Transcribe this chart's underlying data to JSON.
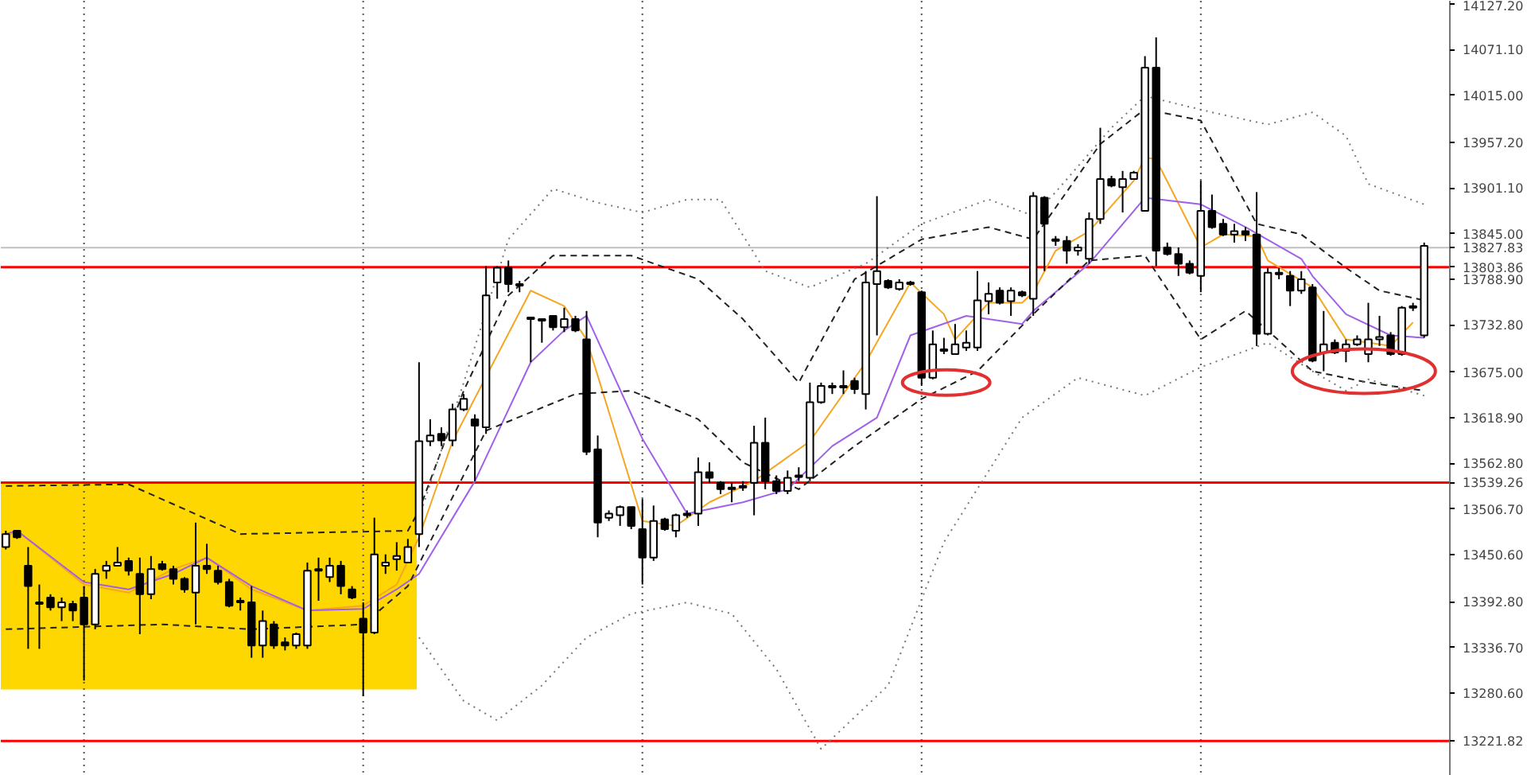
{
  "chart_data": {
    "type": "candlestick",
    "categories": [
      null,
      null,
      null,
      null,
      null,
      null,
      null,
      null,
      null,
      null,
      null,
      null,
      null,
      null,
      null,
      null,
      null,
      null,
      null,
      null,
      null,
      null,
      null,
      null,
      null,
      null,
      null,
      null,
      null,
      null,
      null,
      null,
      null,
      null,
      null,
      null,
      null,
      null,
      null,
      null,
      null,
      null,
      null,
      null,
      null,
      null,
      null,
      null,
      null,
      null,
      null,
      null,
      null,
      null,
      null,
      null,
      null,
      null,
      null,
      null,
      null,
      null,
      null,
      null,
      null,
      null,
      null,
      null,
      null,
      null,
      null,
      null,
      null,
      null,
      null,
      null,
      null,
      null,
      null,
      null,
      null,
      null,
      null,
      null,
      null,
      null,
      null,
      null,
      null,
      null,
      null,
      null,
      null,
      null,
      null,
      null,
      null,
      null,
      null,
      null,
      null,
      null,
      null,
      null,
      null,
      null,
      null,
      null,
      null,
      null,
      null,
      null,
      null,
      null,
      null,
      null,
      null,
      null,
      null,
      null,
      null,
      null,
      null,
      null,
      null,
      null,
      null,
      null
    ],
    "ohlc": [
      [
        13460,
        13480,
        13457,
        13476
      ],
      [
        13480,
        13480,
        13470,
        13472
      ],
      [
        13437,
        13460,
        13335,
        13412
      ],
      [
        13392,
        13414,
        13335,
        13390
      ],
      [
        13398,
        13402,
        13382,
        13386
      ],
      [
        13386,
        13398,
        13369,
        13392
      ],
      [
        13390,
        13394,
        13369,
        13382
      ],
      [
        13398,
        13412,
        13296,
        13365
      ],
      [
        13365,
        13433,
        13359,
        13427
      ],
      [
        13431,
        13443,
        13421,
        13437
      ],
      [
        13437,
        13460,
        13437,
        13441
      ],
      [
        13443,
        13447,
        13425,
        13431
      ],
      [
        13427,
        13447,
        13353,
        13402
      ],
      [
        13402,
        13449,
        13396,
        13433
      ],
      [
        13439,
        13443,
        13431,
        13433
      ],
      [
        13433,
        13437,
        13414,
        13421
      ],
      [
        13421,
        13423,
        13404,
        13408
      ],
      [
        13404,
        13490,
        13365,
        13437
      ],
      [
        13437,
        13464,
        13427,
        13433
      ],
      [
        13431,
        13437,
        13414,
        13417
      ],
      [
        13417,
        13421,
        13386,
        13388
      ],
      [
        13394,
        13398,
        13382,
        13392
      ],
      [
        13392,
        13412,
        13324,
        13339
      ],
      [
        13339,
        13382,
        13324,
        13369
      ],
      [
        13365,
        13369,
        13335,
        13339
      ],
      [
        13343,
        13349,
        13333,
        13339
      ],
      [
        13339,
        13355,
        13335,
        13353
      ],
      [
        13339,
        13441,
        13335,
        13431
      ],
      [
        13431,
        13447,
        13394,
        13433
      ],
      [
        13423,
        13447,
        13417,
        13437
      ],
      [
        13437,
        13443,
        13402,
        13412
      ],
      [
        13408,
        13412,
        13396,
        13398
      ],
      [
        13372,
        13392,
        13277,
        13355
      ],
      [
        13355,
        13496,
        13353,
        13451
      ],
      [
        13437,
        13451,
        13427,
        13441
      ],
      [
        13445,
        13466,
        13431,
        13449
      ],
      [
        13441,
        13470,
        13441,
        13460
      ],
      [
        13476,
        13687,
        13460,
        13590
      ],
      [
        13590,
        13617,
        13584,
        13597
      ],
      [
        13599,
        13607,
        13584,
        13591
      ],
      [
        13591,
        13636,
        13584,
        13629
      ],
      [
        13629,
        13648,
        13627,
        13642
      ],
      [
        13617,
        13623,
        13541,
        13609
      ],
      [
        13607,
        13805,
        13599,
        13769
      ],
      [
        13785,
        13805,
        13765,
        13803
      ],
      [
        13803,
        13812,
        13773,
        13783
      ],
      [
        13783,
        13787,
        13773,
        13781
      ],
      [
        13742,
        13742,
        13687,
        13740
      ],
      [
        13740,
        13740,
        13711,
        13738
      ],
      [
        13744,
        13744,
        13726,
        13730
      ],
      [
        13730,
        13754,
        13724,
        13740
      ],
      [
        13740,
        13744,
        13724,
        13726
      ],
      [
        13715,
        13750,
        13573,
        13577
      ],
      [
        13580,
        13597,
        13472,
        13490
      ],
      [
        13496,
        13505,
        13492,
        13501
      ],
      [
        13499,
        13511,
        13486,
        13509
      ],
      [
        13509,
        13509,
        13482,
        13486
      ],
      [
        13482,
        13519,
        13414,
        13447
      ],
      [
        13447,
        13511,
        13443,
        13492
      ],
      [
        13494,
        13496,
        13480,
        13482
      ],
      [
        13480,
        13501,
        13472,
        13499
      ],
      [
        13499,
        13505,
        13496,
        13501
      ],
      [
        13501,
        13570,
        13486,
        13552
      ],
      [
        13552,
        13564,
        13539,
        13545
      ],
      [
        13539,
        13541,
        13525,
        13531
      ],
      [
        13533,
        13539,
        13515,
        13531
      ],
      [
        13535,
        13541,
        13529,
        13533
      ],
      [
        13539,
        13609,
        13499,
        13588
      ],
      [
        13588,
        13619,
        13531,
        13541
      ],
      [
        13541,
        13548,
        13525,
        13529
      ],
      [
        13529,
        13554,
        13525,
        13545
      ],
      [
        13546,
        13558,
        13541,
        13548
      ],
      [
        13545,
        13662,
        13541,
        13638
      ],
      [
        13638,
        13662,
        13636,
        13658
      ],
      [
        13656,
        13662,
        13648,
        13658
      ],
      [
        13658,
        13677,
        13648,
        13656
      ],
      [
        13664,
        13668,
        13648,
        13654
      ],
      [
        13648,
        13799,
        13629,
        13785
      ],
      [
        13783,
        13891,
        13720,
        13799
      ],
      [
        13787,
        13789,
        13777,
        13779
      ],
      [
        13777,
        13789,
        13775,
        13785
      ],
      [
        13785,
        13787,
        13781,
        13783
      ],
      [
        13773,
        13775,
        13658,
        13668
      ],
      [
        13668,
        13726,
        13666,
        13709
      ],
      [
        13703,
        13717,
        13697,
        13701
      ],
      [
        13697,
        13734,
        13697,
        13709
      ],
      [
        13705,
        13726,
        13701,
        13711
      ],
      [
        13705,
        13799,
        13701,
        13763
      ],
      [
        13762,
        13785,
        13746,
        13771
      ],
      [
        13775,
        13779,
        13758,
        13760
      ],
      [
        13762,
        13779,
        13744,
        13775
      ],
      [
        13773,
        13775,
        13767,
        13769
      ],
      [
        13765,
        13896,
        13744,
        13891
      ],
      [
        13889,
        13891,
        13799,
        13857
      ],
      [
        13838,
        13842,
        13830,
        13836
      ],
      [
        13836,
        13842,
        13808,
        13824
      ],
      [
        13824,
        13832,
        13818,
        13828
      ],
      [
        13814,
        13871,
        13808,
        13863
      ],
      [
        13863,
        13975,
        13857,
        13912
      ],
      [
        13912,
        13916,
        13902,
        13904
      ],
      [
        13902,
        13922,
        13871,
        13912
      ],
      [
        13912,
        13922,
        13912,
        13920
      ],
      [
        13873,
        14063,
        13873,
        14049
      ],
      [
        14049,
        14086,
        13805,
        13824
      ],
      [
        13828,
        13834,
        13818,
        13820
      ],
      [
        13820,
        13828,
        13793,
        13808
      ],
      [
        13808,
        13812,
        13795,
        13797
      ],
      [
        13793,
        13910,
        13773,
        13873
      ],
      [
        13873,
        13893,
        13851,
        13853
      ],
      [
        13857,
        13863,
        13842,
        13844
      ],
      [
        13844,
        13857,
        13834,
        13848
      ],
      [
        13848,
        13853,
        13836,
        13844
      ],
      [
        13844,
        13896,
        13707,
        13722
      ],
      [
        13722,
        13803,
        13720,
        13797
      ],
      [
        13797,
        13803,
        13789,
        13795
      ],
      [
        13793,
        13799,
        13756,
        13775
      ],
      [
        13775,
        13799,
        13771,
        13789
      ],
      [
        13779,
        13783,
        13687,
        13689
      ],
      [
        13699,
        13750,
        13676,
        13709
      ],
      [
        13711,
        13715,
        13697,
        13699
      ],
      [
        13701,
        13715,
        13687,
        13709
      ],
      [
        13709,
        13720,
        13707,
        13715
      ],
      [
        13697,
        13760,
        13687,
        13715
      ],
      [
        13715,
        13744,
        13707,
        13718
      ],
      [
        13720,
        13724,
        13695,
        13697
      ],
      [
        13697,
        13756,
        13695,
        13754
      ],
      [
        13754,
        13760,
        13750,
        13756
      ],
      [
        13720,
        13834,
        13717,
        13830
      ]
    ],
    "series": [
      {
        "type": "line",
        "color": "#f5a623",
        "values": [
          13472,
          13480,
          null,
          null,
          null,
          null,
          null,
          13414,
          null,
          null,
          null,
          13404,
          null,
          null,
          null,
          13433,
          null,
          null,
          13447,
          null,
          null,
          null,
          13408,
          null,
          null,
          null,
          null,
          13382,
          null,
          null,
          null,
          null,
          13388,
          null,
          null,
          13414,
          null,
          13472,
          null,
          null,
          13590,
          null,
          null,
          null,
          null,
          null,
          null,
          13775,
          null,
          null,
          13756,
          null,
          13715,
          null,
          null,
          null,
          null,
          13492,
          null,
          null,
          13486,
          null,
          null,
          13515,
          null,
          null,
          null,
          13541,
          null,
          null,
          null,
          null,
          13590,
          null,
          null,
          null,
          null,
          13687,
          null,
          null,
          null,
          13785,
          null,
          null,
          13746,
          13715,
          null,
          null,
          13760,
          null,
          null,
          13760,
          13773,
          null,
          13824,
          null,
          null,
          13848,
          null,
          null,
          null,
          13910,
          13939,
          13936,
          null,
          null,
          null,
          13828,
          null,
          13844,
          null,
          null,
          13842,
          13812,
          null,
          null,
          null,
          13779,
          null,
          null,
          13715,
          null,
          null,
          null,
          13707,
          null,
          13736,
          null
        ]
      },
      {
        "type": "line",
        "color": "#a061e8",
        "values": [
          13476,
          13480,
          null,
          null,
          null,
          null,
          null,
          13417,
          null,
          null,
          null,
          13408,
          null,
          null,
          null,
          13427,
          null,
          null,
          13447,
          null,
          null,
          null,
          13412,
          null,
          null,
          null,
          null,
          13382,
          null,
          null,
          null,
          null,
          13384,
          null,
          null,
          13408,
          null,
          13427,
          null,
          null,
          null,
          null,
          13541,
          null,
          null,
          null,
          null,
          13687,
          null,
          null,
          13726,
          null,
          13744,
          null,
          null,
          null,
          null,
          13593,
          null,
          null,
          null,
          13501,
          null,
          null,
          null,
          null,
          13515,
          null,
          null,
          null,
          13531,
          null,
          null,
          null,
          13584,
          null,
          null,
          null,
          13619,
          null,
          null,
          13720,
          null,
          null,
          null,
          null,
          13744,
          null,
          null,
          null,
          null,
          13734,
          13750,
          null,
          null,
          null,
          null,
          13808,
          null,
          null,
          null,
          null,
          13889,
          null,
          null,
          null,
          null,
          13881,
          null,
          null,
          null,
          13853,
          null,
          null,
          null,
          null,
          13814,
          13793,
          null,
          null,
          13746,
          null,
          null,
          null,
          13720,
          null,
          null,
          13717
        ]
      },
      {
        "type": "line",
        "color": "#222222",
        "line_style": "dashed",
        "values": [
          13535,
          null,
          null,
          null,
          null,
          null,
          null,
          null,
          null,
          null,
          null,
          13537,
          null,
          null,
          null,
          null,
          null,
          null,
          null,
          null,
          null,
          13476,
          null,
          null,
          null,
          null,
          null,
          null,
          null,
          null,
          null,
          null,
          null,
          null,
          null,
          null,
          13480,
          13505,
          null,
          null,
          null,
          13652,
          null,
          null,
          null,
          13769,
          null,
          null,
          null,
          13818,
          null,
          null,
          null,
          null,
          null,
          null,
          13818,
          null,
          null,
          null,
          null,
          null,
          13789,
          null,
          null,
          null,
          13740,
          null,
          null,
          null,
          null,
          13662,
          null,
          null,
          null,
          null,
          13789,
          null,
          null,
          null,
          null,
          null,
          13838,
          null,
          null,
          null,
          null,
          null,
          13853,
          null,
          null,
          null,
          13838,
          null,
          null,
          null,
          null,
          null,
          13955,
          null,
          null,
          null,
          13998,
          null,
          null,
          null,
          null,
          13984,
          null,
          null,
          null,
          null,
          13857,
          null,
          null,
          null,
          13844,
          null,
          null,
          null,
          13803,
          null,
          null,
          13775,
          null,
          null,
          null,
          13763
        ]
      },
      {
        "type": "line",
        "color": "#222222",
        "line_style": "dashed",
        "values": [
          13359,
          null,
          null,
          null,
          null,
          null,
          null,
          null,
          null,
          null,
          null,
          null,
          null,
          null,
          13365,
          null,
          null,
          null,
          null,
          null,
          null,
          null,
          13359,
          null,
          null,
          null,
          null,
          null,
          null,
          null,
          null,
          null,
          13365,
          null,
          null,
          null,
          13412,
          null,
          null,
          null,
          null,
          null,
          null,
          13603,
          null,
          null,
          null,
          null,
          null,
          null,
          null,
          13648,
          null,
          null,
          null,
          null,
          13652,
          null,
          null,
          null,
          null,
          null,
          13617,
          null,
          null,
          null,
          13564,
          null,
          null,
          null,
          null,
          13531,
          null,
          null,
          null,
          null,
          13584,
          null,
          null,
          null,
          null,
          null,
          13642,
          null,
          null,
          null,
          null,
          13676,
          null,
          null,
          null,
          null,
          13746,
          null,
          null,
          null,
          null,
          13812,
          null,
          null,
          null,
          null,
          13818,
          null,
          null,
          null,
          null,
          13715,
          null,
          null,
          null,
          13750,
          null,
          13726,
          null,
          null,
          null,
          13676,
          null,
          null,
          null,
          null,
          13662,
          null,
          null,
          null,
          null,
          13652
        ]
      },
      {
        "type": "line",
        "color": "#777777",
        "line_style": "dotted",
        "values": [
          null,
          null,
          null,
          null,
          null,
          null,
          null,
          null,
          null,
          null,
          null,
          null,
          null,
          null,
          null,
          null,
          null,
          null,
          null,
          null,
          null,
          null,
          null,
          null,
          null,
          null,
          null,
          null,
          null,
          null,
          null,
          null,
          null,
          null,
          null,
          null,
          null,
          13496,
          null,
          null,
          null,
          13662,
          null,
          null,
          null,
          13838,
          null,
          null,
          null,
          13900,
          null,
          null,
          null,
          13883,
          null,
          null,
          null,
          13871,
          null,
          null,
          null,
          13887,
          null,
          null,
          13887,
          null,
          null,
          null,
          13799,
          null,
          null,
          null,
          13779,
          null,
          null,
          null,
          null,
          13808,
          null,
          null,
          null,
          null,
          13857,
          null,
          null,
          null,
          null,
          null,
          13887,
          null,
          null,
          null,
          13867,
          null,
          13896,
          null,
          null,
          null,
          null,
          13975,
          null,
          null,
          14014,
          null,
          null,
          null,
          null,
          null,
          13994,
          null,
          null,
          null,
          null,
          13979,
          null,
          null,
          null,
          13994,
          null,
          null,
          13965,
          null,
          13906,
          null,
          null,
          null,
          null,
          13881
        ]
      },
      {
        "type": "line",
        "color": "#777777",
        "line_style": "dotted",
        "values": [
          null,
          null,
          null,
          null,
          null,
          null,
          null,
          null,
          null,
          null,
          null,
          null,
          null,
          null,
          null,
          null,
          null,
          null,
          null,
          null,
          null,
          null,
          null,
          null,
          null,
          null,
          null,
          null,
          null,
          null,
          null,
          null,
          null,
          null,
          null,
          null,
          null,
          13349,
          null,
          null,
          null,
          13271,
          null,
          null,
          13247,
          null,
          null,
          null,
          13290,
          null,
          null,
          null,
          13349,
          null,
          null,
          null,
          13378,
          null,
          null,
          null,
          null,
          13392,
          null,
          null,
          null,
          13378,
          null,
          null,
          null,
          13310,
          null,
          null,
          null,
          13212,
          null,
          null,
          null,
          null,
          null,
          13290,
          null,
          null,
          null,
          null,
          13466,
          null,
          null,
          null,
          null,
          null,
          null,
          13619,
          null,
          null,
          null,
          null,
          13668,
          null,
          null,
          null,
          null,
          null,
          13646,
          null,
          null,
          null,
          null,
          13681,
          null,
          null,
          null,
          null,
          null,
          13711,
          null,
          null,
          null,
          13676,
          null,
          null,
          13652,
          null,
          13666,
          null,
          null,
          null,
          null,
          13646
        ]
      }
    ],
    "ylim": [
      13179,
      14131
    ],
    "yticks": [
      {
        "value": 14127.2,
        "label": "14127.20"
      },
      {
        "value": 14071.1,
        "label": "14071.10"
      },
      {
        "value": 14015.0,
        "label": "14015.00"
      },
      {
        "value": 13957.2,
        "label": "13957.20"
      },
      {
        "value": 13901.1,
        "label": "13901.10"
      },
      {
        "value": 13845.0,
        "label": "13845.00"
      },
      {
        "value": 13788.9,
        "label": "13788.90"
      },
      {
        "value": 13732.8,
        "label": "13732.80"
      },
      {
        "value": 13675.0,
        "label": "13675.00"
      },
      {
        "value": 13618.9,
        "label": "13618.90"
      },
      {
        "value": 13562.8,
        "label": "13562.80"
      },
      {
        "value": 13506.7,
        "label": "13506.70"
      },
      {
        "value": 13450.6,
        "label": "13450.60"
      },
      {
        "value": 13392.8,
        "label": "13392.80"
      },
      {
        "value": 13336.7,
        "label": "13336.70"
      },
      {
        "value": 13280.6,
        "label": "13280.60"
      }
    ],
    "ref_lines": [
      {
        "axis": "y",
        "value": 13827.83,
        "label": "13827.83",
        "color": "#c0c0c0"
      },
      {
        "axis": "y",
        "value": 13803.86,
        "label": "13803.86",
        "color": "#ff0000"
      },
      {
        "axis": "y",
        "value": 13539.26,
        "label": "13539.26",
        "color": "#ff0000"
      },
      {
        "axis": "y",
        "value": 13221.82,
        "label": "13221.82",
        "color": "#ff0000"
      }
    ],
    "bands": [
      {
        "axis": "y",
        "from": 13285,
        "to": 13539.26,
        "color": "#ffd700"
      }
    ],
    "tick_labels": "y"
  }
}
